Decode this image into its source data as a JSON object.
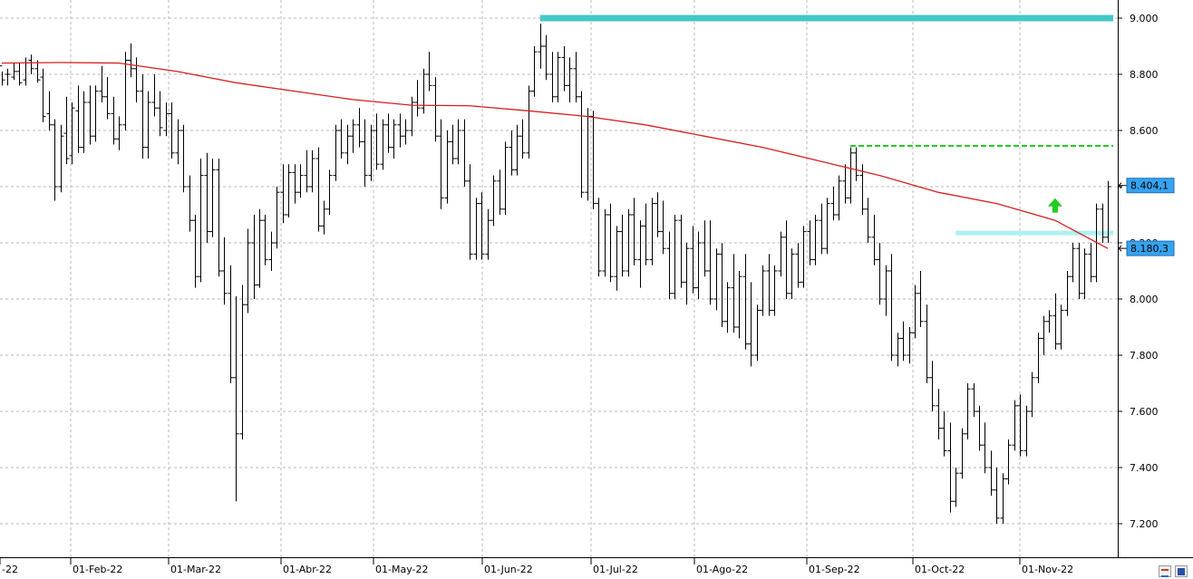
{
  "chart_data": {
    "type": "ohlc-bar",
    "y_ticks": [
      9000,
      8800,
      8600,
      8400,
      8200,
      8000,
      7800,
      7600,
      7400,
      7200
    ],
    "y_tick_labels": [
      "9.000",
      "8.800",
      "8.600",
      "8.400",
      "8.200",
      "8.000",
      "7.800",
      "7.600",
      "7.400",
      "7.200"
    ],
    "ylim": [
      7100,
      9050
    ],
    "x_tick_labels": [
      {
        "label": "-22",
        "day": 0
      },
      {
        "label": "01-Feb-22",
        "day": 19
      },
      {
        "label": "01-Mar-22",
        "day": 47
      },
      {
        "label": "01-Abr-22",
        "day": 78
      },
      {
        "label": "01-May-22",
        "day": 108
      },
      {
        "label": "01-Jun-22",
        "day": 139
      },
      {
        "label": "01-Jul-22",
        "day": 169
      },
      {
        "label": "01-Ago-22",
        "day": 200
      },
      {
        "label": "01-Sep-22",
        "day": 231
      },
      {
        "label": "01-Oct-22",
        "day": 261
      },
      {
        "label": "01-Nov-22",
        "day": 292
      }
    ],
    "x_range_days": [
      0,
      320
    ],
    "bars": [
      [
        0,
        8830,
        8810,
        8760,
        8780
      ],
      [
        1,
        8800,
        8820,
        8760,
        8800
      ],
      [
        2,
        8790,
        8840,
        8780,
        8810
      ],
      [
        3,
        8810,
        8840,
        8760,
        8770
      ],
      [
        4,
        8780,
        8860,
        8760,
        8840
      ],
      [
        5,
        8850,
        8870,
        8800,
        8820
      ],
      [
        6,
        8820,
        8850,
        8770,
        8780
      ],
      [
        7,
        8790,
        8820,
        8630,
        8650
      ],
      [
        8,
        8660,
        8740,
        8600,
        8620
      ],
      [
        9,
        8620,
        8640,
        8350,
        8400
      ],
      [
        10,
        8400,
        8620,
        8380,
        8580
      ],
      [
        11,
        8590,
        8720,
        8480,
        8500
      ],
      [
        12,
        8510,
        8700,
        8480,
        8680
      ],
      [
        13,
        8670,
        8760,
        8520,
        8540
      ],
      [
        14,
        8540,
        8740,
        8520,
        8700
      ],
      [
        15,
        8700,
        8760,
        8550,
        8580
      ],
      [
        16,
        8580,
        8760,
        8560,
        8740
      ],
      [
        17,
        8740,
        8830,
        8700,
        8720
      ],
      [
        18,
        8720,
        8790,
        8640,
        8660
      ],
      [
        19,
        8660,
        8720,
        8550,
        8570
      ],
      [
        20,
        8570,
        8650,
        8530,
        8620
      ],
      [
        21,
        8620,
        8880,
        8600,
        8850
      ],
      [
        22,
        8850,
        8910,
        8790,
        8820
      ],
      [
        23,
        8820,
        8860,
        8700,
        8740
      ],
      [
        24,
        8740,
        8800,
        8500,
        8540
      ],
      [
        25,
        8540,
        8740,
        8500,
        8700
      ],
      [
        26,
        8700,
        8800,
        8650,
        8680
      ],
      [
        27,
        8680,
        8740,
        8580,
        8610
      ],
      [
        28,
        8600,
        8700,
        8580,
        8660
      ],
      [
        29,
        8660,
        8700,
        8500,
        8520
      ],
      [
        30,
        8520,
        8640,
        8480,
        8600
      ],
      [
        31,
        8600,
        8620,
        8380,
        8400
      ],
      [
        32,
        8400,
        8440,
        8240,
        8280
      ],
      [
        33,
        8280,
        8300,
        8040,
        8080
      ],
      [
        34,
        8080,
        8500,
        8060,
        8440
      ],
      [
        35,
        8440,
        8520,
        8200,
        8240
      ],
      [
        36,
        8240,
        8500,
        8220,
        8460
      ],
      [
        37,
        8460,
        8500,
        8080,
        8100
      ],
      [
        38,
        8100,
        8220,
        7980,
        8020
      ],
      [
        39,
        8020,
        8120,
        7700,
        7720
      ],
      [
        40,
        7720,
        8010,
        7280,
        7520
      ],
      [
        41,
        7520,
        8050,
        7500,
        7980
      ],
      [
        42,
        7980,
        8250,
        7950,
        8200
      ],
      [
        43,
        8200,
        8300,
        8000,
        8050
      ],
      [
        44,
        8050,
        8320,
        8040,
        8280
      ],
      [
        45,
        8280,
        8300,
        8120,
        8140
      ],
      [
        46,
        8140,
        8240,
        8100,
        8200
      ],
      [
        47,
        8200,
        8400,
        8180,
        8380
      ],
      [
        48,
        8380,
        8480,
        8270,
        8300
      ],
      [
        49,
        8300,
        8480,
        8290,
        8450
      ],
      [
        50,
        8450,
        8480,
        8340,
        8380
      ],
      [
        51,
        8380,
        8480,
        8360,
        8440
      ],
      [
        52,
        8440,
        8530,
        8380,
        8400
      ],
      [
        53,
        8400,
        8530,
        8380,
        8500
      ],
      [
        54,
        8500,
        8540,
        8240,
        8260
      ],
      [
        55,
        8260,
        8350,
        8230,
        8320
      ],
      [
        56,
        8320,
        8460,
        8300,
        8440
      ],
      [
        57,
        8440,
        8620,
        8420,
        8600
      ],
      [
        58,
        8600,
        8640,
        8500,
        8520
      ],
      [
        59,
        8520,
        8620,
        8480,
        8580
      ],
      [
        60,
        8580,
        8640,
        8520,
        8620
      ],
      [
        61,
        8620,
        8680,
        8540,
        8560
      ],
      [
        62,
        8560,
        8640,
        8400,
        8440
      ],
      [
        63,
        8440,
        8620,
        8420,
        8600
      ],
      [
        64,
        8600,
        8660,
        8460,
        8480
      ],
      [
        65,
        8480,
        8640,
        8460,
        8620
      ],
      [
        66,
        8620,
        8660,
        8520,
        8540
      ],
      [
        67,
        8540,
        8640,
        8500,
        8620
      ],
      [
        68,
        8620,
        8660,
        8540,
        8580
      ],
      [
        69,
        8580,
        8640,
        8550,
        8600
      ],
      [
        70,
        8600,
        8720,
        8580,
        8700
      ],
      [
        71,
        8700,
        8780,
        8650,
        8680
      ],
      [
        72,
        8680,
        8820,
        8660,
        8800
      ],
      [
        73,
        8800,
        8880,
        8740,
        8760
      ],
      [
        74,
        8760,
        8790,
        8560,
        8580
      ],
      [
        75,
        8580,
        8640,
        8320,
        8360
      ],
      [
        76,
        8360,
        8600,
        8340,
        8560
      ],
      [
        77,
        8560,
        8620,
        8480,
        8500
      ],
      [
        78,
        8500,
        8640,
        8480,
        8600
      ],
      [
        79,
        8600,
        8640,
        8400,
        8420
      ],
      [
        80,
        8420,
        8480,
        8140,
        8160
      ],
      [
        81,
        8160,
        8360,
        8140,
        8340
      ],
      [
        82,
        8340,
        8380,
        8140,
        8160
      ],
      [
        83,
        8160,
        8320,
        8140,
        8280
      ],
      [
        84,
        8280,
        8440,
        8260,
        8420
      ],
      [
        85,
        8420,
        8460,
        8300,
        8320
      ],
      [
        86,
        8320,
        8560,
        8300,
        8540
      ],
      [
        87,
        8540,
        8600,
        8440,
        8460
      ],
      [
        88,
        8460,
        8620,
        8440,
        8580
      ],
      [
        89,
        8580,
        8640,
        8500,
        8520
      ],
      [
        90,
        8520,
        8760,
        8500,
        8740
      ],
      [
        91,
        8740,
        8900,
        8720,
        8880
      ],
      [
        92,
        8880,
        8980,
        8820,
        8900
      ],
      [
        93,
        8900,
        8940,
        8780,
        8800
      ],
      [
        94,
        8800,
        8880,
        8700,
        8720
      ],
      [
        95,
        8720,
        8880,
        8700,
        8860
      ],
      [
        96,
        8860,
        8900,
        8740,
        8760
      ],
      [
        97,
        8760,
        8860,
        8700,
        8820
      ],
      [
        98,
        8820,
        8880,
        8700,
        8720
      ],
      [
        99,
        8720,
        8740,
        8360,
        8380
      ],
      [
        100,
        8380,
        8680,
        8350,
        8650
      ],
      [
        101,
        8650,
        8670,
        8320,
        8340
      ],
      [
        102,
        8340,
        8360,
        8080,
        8100
      ],
      [
        103,
        8100,
        8320,
        8080,
        8300
      ],
      [
        104,
        8300,
        8340,
        8060,
        8080
      ],
      [
        105,
        8080,
        8260,
        8030,
        8240
      ],
      [
        106,
        8240,
        8300,
        8080,
        8100
      ],
      [
        107,
        8100,
        8320,
        8080,
        8300
      ],
      [
        108,
        8300,
        8360,
        8120,
        8140
      ],
      [
        109,
        8140,
        8280,
        8040,
        8260
      ],
      [
        110,
        8260,
        8340,
        8120,
        8140
      ],
      [
        111,
        8140,
        8360,
        8120,
        8340
      ],
      [
        112,
        8340,
        8380,
        8220,
        8240
      ],
      [
        113,
        8240,
        8350,
        8160,
        8180
      ],
      [
        114,
        8180,
        8240,
        8000,
        8020
      ],
      [
        115,
        8020,
        8300,
        8000,
        8280
      ],
      [
        116,
        8280,
        8300,
        8040,
        8060
      ],
      [
        117,
        8060,
        8200,
        7980,
        8180
      ],
      [
        118,
        8180,
        8260,
        8020,
        8040
      ],
      [
        119,
        8040,
        8240,
        8000,
        8200
      ],
      [
        120,
        8200,
        8280,
        8080,
        8100
      ],
      [
        121,
        8100,
        8280,
        7980,
        8000
      ],
      [
        122,
        8000,
        8180,
        7960,
        8160
      ],
      [
        123,
        8160,
        8200,
        7900,
        7920
      ],
      [
        124,
        7920,
        8060,
        7880,
        8040
      ],
      [
        125,
        8040,
        8160,
        7880,
        7900
      ],
      [
        126,
        7900,
        8100,
        7860,
        8080
      ],
      [
        127,
        8080,
        8160,
        7820,
        7840
      ],
      [
        128,
        7840,
        8060,
        7760,
        7800
      ],
      [
        129,
        7800,
        7980,
        7780,
        7960
      ],
      [
        130,
        7960,
        8120,
        7940,
        8100
      ],
      [
        131,
        8100,
        8160,
        7940,
        7960
      ],
      [
        132,
        7960,
        8120,
        7940,
        8100
      ],
      [
        133,
        8100,
        8240,
        8080,
        8220
      ],
      [
        134,
        8220,
        8280,
        8000,
        8020
      ],
      [
        135,
        8020,
        8180,
        8000,
        8160
      ],
      [
        136,
        8160,
        8200,
        8040,
        8060
      ],
      [
        137,
        8060,
        8260,
        8040,
        8240
      ],
      [
        138,
        8240,
        8280,
        8120,
        8140
      ],
      [
        139,
        8140,
        8300,
        8120,
        8280
      ],
      [
        140,
        8280,
        8340,
        8160,
        8180
      ],
      [
        141,
        8180,
        8360,
        8160,
        8340
      ],
      [
        142,
        8340,
        8400,
        8280,
        8300
      ],
      [
        143,
        8300,
        8440,
        8280,
        8420
      ],
      [
        144,
        8420,
        8480,
        8340,
        8360
      ],
      [
        145,
        8360,
        8540,
        8340,
        8520
      ],
      [
        146,
        8520,
        8540,
        8420,
        8440
      ],
      [
        147,
        8440,
        8480,
        8300,
        8320
      ],
      [
        148,
        8320,
        8360,
        8200,
        8220
      ],
      [
        149,
        8220,
        8300,
        8120,
        8140
      ],
      [
        150,
        8140,
        8200,
        7980,
        8000
      ],
      [
        151,
        8000,
        8120,
        7940,
        8100
      ],
      [
        152,
        8100,
        8160,
        7780,
        7800
      ],
      [
        153,
        7800,
        7880,
        7760,
        7860
      ],
      [
        154,
        7860,
        7920,
        7780,
        7800
      ],
      [
        155,
        7800,
        7900,
        7770,
        7880
      ],
      [
        156,
        7880,
        8050,
        7860,
        8020
      ],
      [
        157,
        8020,
        8100,
        7900,
        7920
      ],
      [
        158,
        7920,
        7980,
        7700,
        7720
      ],
      [
        159,
        7720,
        7780,
        7600,
        7620
      ],
      [
        160,
        7620,
        7680,
        7500,
        7540
      ],
      [
        161,
        7540,
        7600,
        7440,
        7460
      ],
      [
        162,
        7460,
        7560,
        7240,
        7280
      ],
      [
        163,
        7280,
        7400,
        7260,
        7380
      ],
      [
        164,
        7380,
        7540,
        7360,
        7520
      ],
      [
        165,
        7520,
        7700,
        7500,
        7680
      ],
      [
        166,
        7680,
        7700,
        7580,
        7600
      ],
      [
        167,
        7600,
        7620,
        7460,
        7480
      ],
      [
        168,
        7480,
        7560,
        7380,
        7400
      ],
      [
        169,
        7400,
        7460,
        7300,
        7320
      ],
      [
        170,
        7320,
        7400,
        7200,
        7220
      ],
      [
        171,
        7220,
        7380,
        7200,
        7360
      ],
      [
        172,
        7360,
        7500,
        7340,
        7480
      ],
      [
        173,
        7480,
        7640,
        7460,
        7620
      ],
      [
        174,
        7620,
        7660,
        7440,
        7460
      ],
      [
        175,
        7460,
        7620,
        7440,
        7600
      ],
      [
        176,
        7600,
        7740,
        7580,
        7720
      ],
      [
        177,
        7720,
        7880,
        7700,
        7860
      ],
      [
        178,
        7860,
        7940,
        7800,
        7920
      ],
      [
        179,
        7920,
        7960,
        7880,
        7940
      ],
      [
        180,
        7940,
        8020,
        7820,
        7840
      ],
      [
        181,
        7840,
        7980,
        7820,
        7960
      ],
      [
        182,
        7960,
        8100,
        7940,
        8080
      ],
      [
        183,
        8080,
        8200,
        8060,
        8180
      ],
      [
        184,
        8180,
        8200,
        8000,
        8020
      ],
      [
        185,
        8020,
        8180,
        8000,
        8160
      ],
      [
        186,
        8160,
        8200,
        8060,
        8080
      ],
      [
        187,
        8080,
        8340,
        8060,
        8320
      ],
      [
        188,
        8320,
        8340,
        8200,
        8220
      ],
      [
        189,
        8220,
        8420,
        8200,
        8400
      ]
    ],
    "moving_average": [
      [
        0,
        8840
      ],
      [
        10,
        8842
      ],
      [
        20,
        8840
      ],
      [
        30,
        8810
      ],
      [
        40,
        8770
      ],
      [
        50,
        8740
      ],
      [
        60,
        8710
      ],
      [
        70,
        8690
      ],
      [
        80,
        8688
      ],
      [
        90,
        8670
      ],
      [
        100,
        8650
      ],
      [
        110,
        8620
      ],
      [
        120,
        8580
      ],
      [
        130,
        8540
      ],
      [
        140,
        8490
      ],
      [
        150,
        8440
      ],
      [
        160,
        8380
      ],
      [
        170,
        8340
      ],
      [
        180,
        8280
      ],
      [
        189,
        8180
      ]
    ],
    "moving_average_color": "#d81f1f",
    "bar_color": "#000000",
    "resistance_level": 9000,
    "resistance_color": "#44c7c7",
    "resistance_start_day": 92,
    "dashed_level": 8545,
    "dashed_color": "#22cc22",
    "dashed_start_day": 145,
    "support_level": 8235,
    "support_color": "#aef1f1",
    "support_start_day": 163,
    "arrow_color": "#22cc22",
    "arrow_day": 180,
    "arrow_level": 8330,
    "last_price_tags": [
      {
        "label": "8.404,1",
        "level": 8404.1
      },
      {
        "label": "8.180,3",
        "level": 8180.3
      }
    ],
    "tag_color": "#36a3f0",
    "grid": true,
    "gridline_color": "#b8b8b8"
  }
}
